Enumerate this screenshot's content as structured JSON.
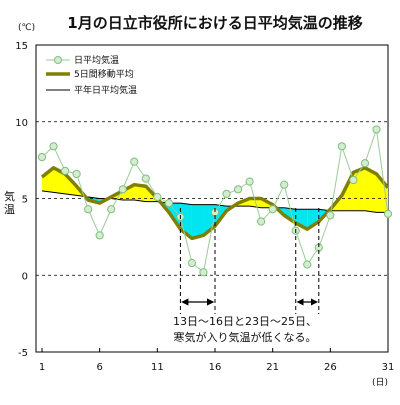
{
  "chart_data": {
    "type": "line",
    "title": "1月の日立市役所における日平均気温の推移",
    "y_unit": "(℃)",
    "x_unit": "(日)",
    "ylabel": "気温",
    "xlim": [
      1,
      31
    ],
    "ylim": [
      -5,
      15
    ],
    "x_ticks": [
      1,
      6,
      11,
      16,
      21,
      26,
      31
    ],
    "y_ticks": [
      -5,
      0,
      5,
      10,
      15
    ],
    "grid": "horizontal dashed at 0, 5, 10",
    "legend_position": "top-left",
    "x": [
      1,
      2,
      3,
      4,
      5,
      6,
      7,
      8,
      9,
      10,
      11,
      12,
      13,
      14,
      15,
      16,
      17,
      18,
      19,
      20,
      21,
      22,
      23,
      24,
      25,
      26,
      27,
      28,
      29,
      30,
      31
    ],
    "series": [
      {
        "name": "日平均気温",
        "color": "#9acd95",
        "values": [
          7.7,
          8.4,
          6.8,
          6.6,
          4.3,
          2.6,
          4.3,
          5.6,
          7.4,
          6.3,
          5.1,
          4.7,
          3.8,
          0.8,
          0.2,
          4.1,
          5.3,
          5.6,
          6.1,
          3.5,
          4.3,
          5.9,
          2.9,
          0.7,
          1.8,
          3.9,
          8.4,
          6.2,
          7.3,
          9.5,
          4.0
        ]
      },
      {
        "name": "5日間移動平均",
        "color": "#808000",
        "values": [
          6.4,
          7.0,
          6.6,
          5.8,
          4.9,
          4.7,
          5.1,
          5.5,
          5.9,
          5.8,
          5.0,
          4.1,
          3.0,
          2.4,
          2.6,
          3.2,
          4.2,
          4.7,
          5.0,
          5.0,
          4.6,
          3.9,
          3.4,
          3.0,
          3.5,
          4.3,
          5.2,
          6.7,
          7.0,
          6.6,
          5.7
        ]
      },
      {
        "name": "平年日平均気温",
        "color": "#000000",
        "values": [
          5.5,
          5.4,
          5.3,
          5.2,
          5.1,
          5.0,
          5.0,
          4.9,
          4.9,
          4.8,
          4.8,
          4.7,
          4.7,
          4.6,
          4.6,
          4.6,
          4.5,
          4.5,
          4.5,
          4.4,
          4.4,
          4.4,
          4.3,
          4.3,
          4.3,
          4.2,
          4.2,
          4.2,
          4.2,
          4.1,
          4.1
        ]
      }
    ],
    "fill_colors": {
      "above": "#ffff00",
      "below": "#00e5f0"
    },
    "annotation": {
      "text_line1": "13日～16日と23日～25日、",
      "text_line2": "寒気が入り気温が低くなる。",
      "ranges": [
        [
          13,
          16
        ],
        [
          23,
          25
        ]
      ]
    }
  }
}
